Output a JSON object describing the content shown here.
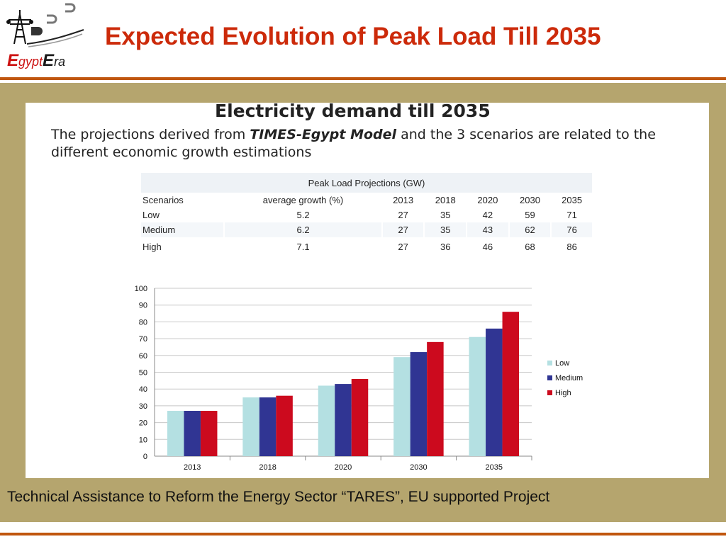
{
  "header": {
    "title": "Expected Evolution of Peak Load Till 2035",
    "logo_e1": "E",
    "logo_gypt": "gypt",
    "logo_e2": "E",
    "logo_ra": "ra"
  },
  "card": {
    "heading": "Electricity demand till  2035",
    "desc_pre": "The projections derived from ",
    "desc_model": "TIMES-Egypt Model",
    "desc_post": " and the 3 scenarios are related to the different economic growth estimations"
  },
  "table": {
    "caption": "Peak Load Projections (GW)",
    "headers": [
      "Scenarios",
      "average growth (%)",
      "2013",
      "2018",
      "2020",
      "2030",
      "2035"
    ],
    "rows": [
      [
        "Low",
        "5.2",
        "27",
        "35",
        "42",
        "59",
        "71"
      ],
      [
        "Medium",
        "6.2",
        "27",
        "35",
        "43",
        "62",
        "76"
      ],
      [
        "High",
        "7.1",
        "27",
        "36",
        "46",
        "68",
        "86"
      ]
    ]
  },
  "footer": {
    "text": "Technical Assistance to  Reform the Energy Sector “TARES”, EU supported Project"
  },
  "colors": {
    "low": "#b4e0e2",
    "medium": "#303593",
    "high": "#cc0a1e",
    "title": "#cc2a0a",
    "accent_rule": "#c0560e",
    "panel": "#b5a56e"
  },
  "chart_data": {
    "type": "bar",
    "categories": [
      "2013",
      "2018",
      "2020",
      "2030",
      "2035"
    ],
    "series": [
      {
        "name": "Low",
        "values": [
          27,
          35,
          42,
          59,
          71
        ]
      },
      {
        "name": "Medium",
        "values": [
          27,
          35,
          43,
          62,
          76
        ]
      },
      {
        "name": "High",
        "values": [
          27,
          36,
          46,
          68,
          86
        ]
      }
    ],
    "ylim": [
      0,
      100
    ],
    "yticks": [
      0,
      10,
      20,
      30,
      40,
      50,
      60,
      70,
      80,
      90,
      100
    ],
    "grid": true,
    "legend": "right",
    "title": "",
    "xlabel": "",
    "ylabel": ""
  }
}
